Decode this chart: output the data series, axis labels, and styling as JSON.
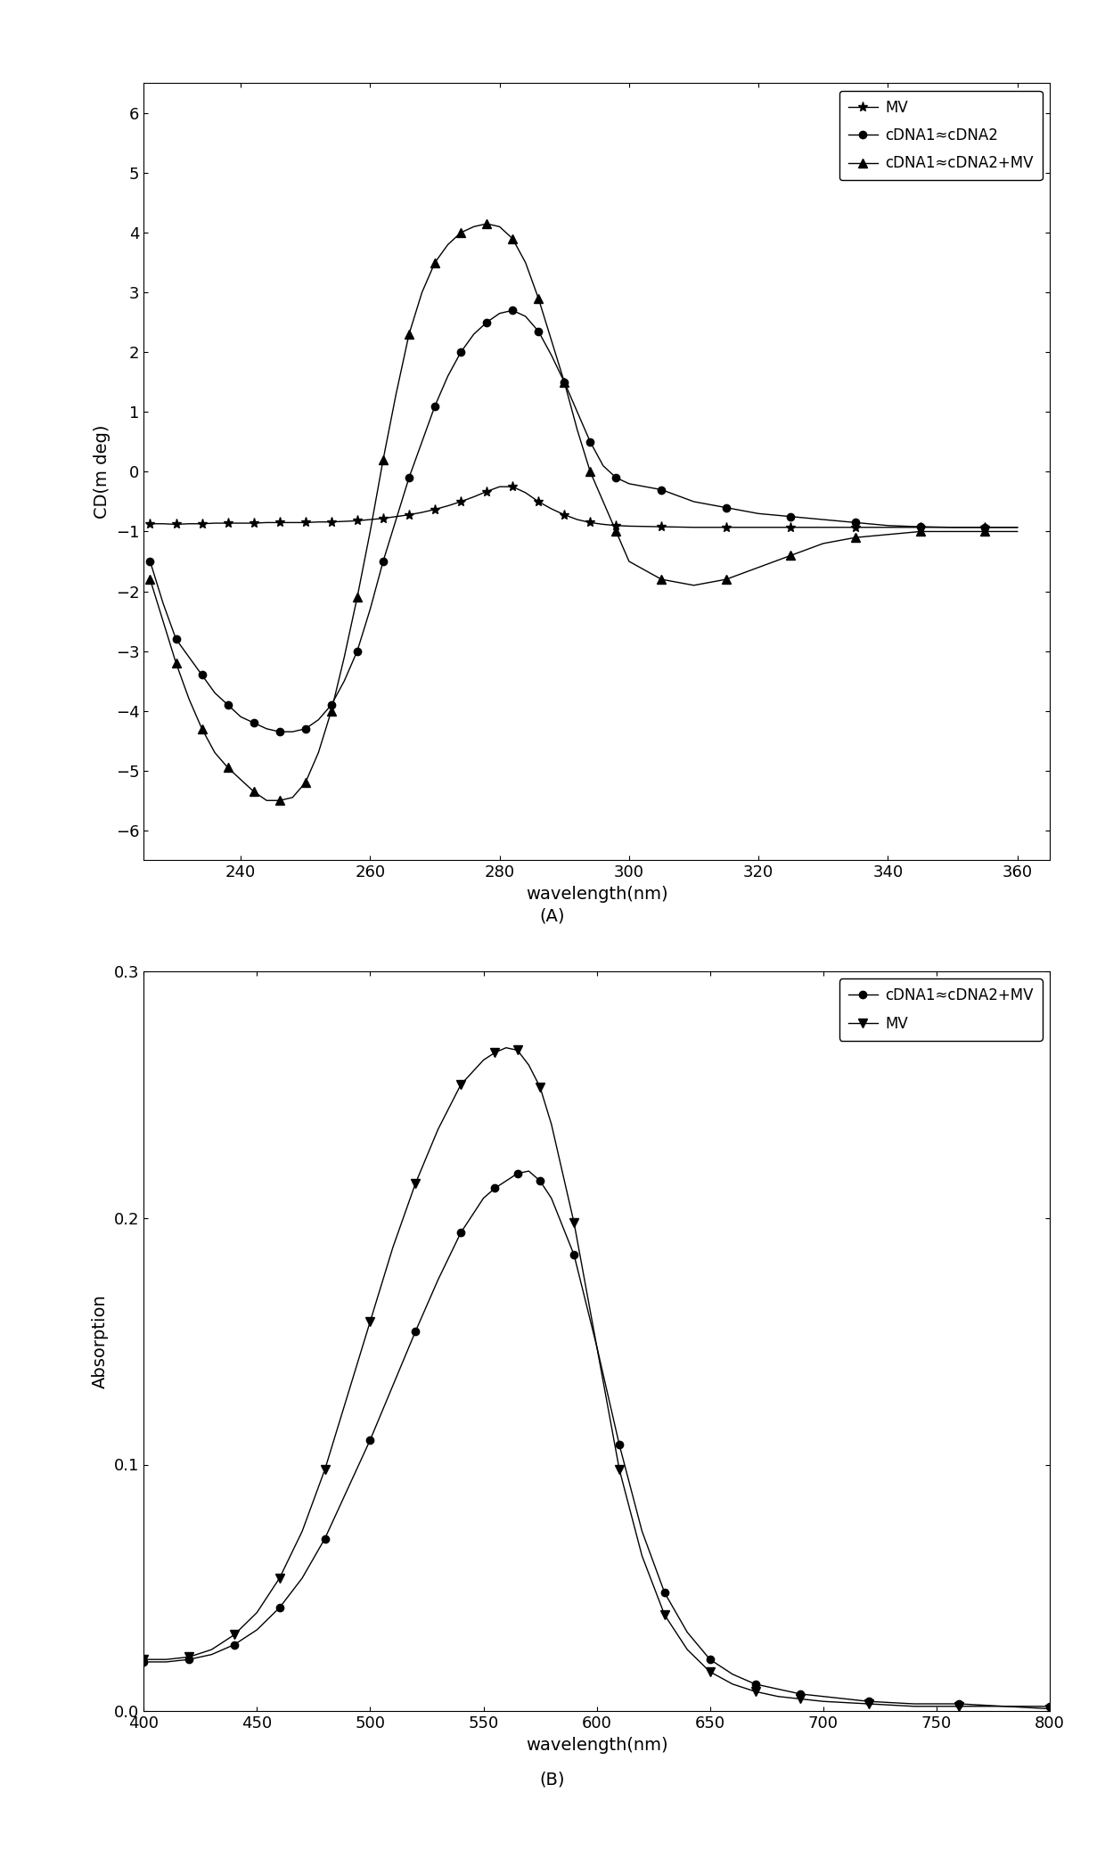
{
  "plot_A": {
    "xlabel": "wavelength(nm)",
    "ylabel": "CD(m deg)",
    "xlim": [
      225,
      365
    ],
    "ylim": [
      -6.5,
      6.5
    ],
    "xticks": [
      240,
      260,
      280,
      300,
      320,
      340,
      360
    ],
    "yticks": [
      -6,
      -5,
      -4,
      -3,
      -2,
      -1,
      0,
      1,
      2,
      3,
      4,
      5,
      6
    ],
    "label_A": "(A)",
    "series": {
      "MV": {
        "marker": "*",
        "label": "MV",
        "x": [
          226,
          228,
          230,
          232,
          234,
          236,
          238,
          240,
          242,
          244,
          246,
          248,
          250,
          252,
          254,
          256,
          258,
          260,
          262,
          264,
          266,
          268,
          270,
          272,
          274,
          276,
          278,
          280,
          282,
          284,
          286,
          288,
          290,
          292,
          294,
          296,
          298,
          300,
          305,
          310,
          315,
          320,
          325,
          330,
          335,
          340,
          345,
          350,
          355,
          360
        ],
        "y": [
          -0.87,
          -0.87,
          -0.88,
          -0.87,
          -0.87,
          -0.86,
          -0.86,
          -0.86,
          -0.86,
          -0.85,
          -0.85,
          -0.85,
          -0.85,
          -0.84,
          -0.84,
          -0.83,
          -0.82,
          -0.8,
          -0.78,
          -0.75,
          -0.72,
          -0.68,
          -0.63,
          -0.57,
          -0.5,
          -0.42,
          -0.33,
          -0.25,
          -0.25,
          -0.35,
          -0.5,
          -0.62,
          -0.72,
          -0.8,
          -0.85,
          -0.88,
          -0.9,
          -0.91,
          -0.92,
          -0.93,
          -0.93,
          -0.93,
          -0.93,
          -0.93,
          -0.93,
          -0.93,
          -0.93,
          -0.93,
          -0.93,
          -0.93
        ]
      },
      "cDNA1cDNA2": {
        "marker": "o",
        "label": "cDNA1≈cDNA2",
        "x": [
          226,
          228,
          230,
          232,
          234,
          236,
          238,
          240,
          242,
          244,
          246,
          248,
          250,
          252,
          254,
          256,
          258,
          260,
          262,
          264,
          266,
          268,
          270,
          272,
          274,
          276,
          278,
          280,
          282,
          284,
          286,
          288,
          290,
          292,
          294,
          296,
          298,
          300,
          305,
          310,
          315,
          320,
          325,
          330,
          335,
          340,
          345,
          350,
          355,
          360
        ],
        "y": [
          -1.5,
          -2.2,
          -2.8,
          -3.1,
          -3.4,
          -3.7,
          -3.9,
          -4.1,
          -4.2,
          -4.3,
          -4.35,
          -4.35,
          -4.3,
          -4.15,
          -3.9,
          -3.5,
          -3.0,
          -2.3,
          -1.5,
          -0.8,
          -0.1,
          0.5,
          1.1,
          1.6,
          2.0,
          2.3,
          2.5,
          2.65,
          2.7,
          2.6,
          2.35,
          1.95,
          1.5,
          1.0,
          0.5,
          0.1,
          -0.1,
          -0.2,
          -0.3,
          -0.5,
          -0.6,
          -0.7,
          -0.75,
          -0.8,
          -0.85,
          -0.9,
          -0.92,
          -0.93,
          -0.93,
          -0.93
        ]
      },
      "cDNA1cDNA2MV": {
        "marker": "^",
        "label": "cDNA1≈cDNA2+MV",
        "x": [
          226,
          228,
          230,
          232,
          234,
          236,
          238,
          240,
          242,
          244,
          246,
          248,
          250,
          252,
          254,
          256,
          258,
          260,
          262,
          264,
          266,
          268,
          270,
          272,
          274,
          276,
          278,
          280,
          282,
          284,
          286,
          288,
          290,
          292,
          294,
          296,
          298,
          300,
          305,
          310,
          315,
          320,
          325,
          330,
          335,
          340,
          345,
          350,
          355,
          360
        ],
        "y": [
          -1.8,
          -2.5,
          -3.2,
          -3.8,
          -4.3,
          -4.7,
          -4.95,
          -5.15,
          -5.35,
          -5.5,
          -5.5,
          -5.45,
          -5.2,
          -4.7,
          -4.0,
          -3.1,
          -2.1,
          -1.0,
          0.2,
          1.3,
          2.3,
          3.0,
          3.5,
          3.8,
          4.0,
          4.1,
          4.15,
          4.1,
          3.9,
          3.5,
          2.9,
          2.2,
          1.5,
          0.7,
          0.0,
          -0.5,
          -1.0,
          -1.5,
          -1.8,
          -1.9,
          -1.8,
          -1.6,
          -1.4,
          -1.2,
          -1.1,
          -1.05,
          -1.0,
          -1.0,
          -1.0,
          -1.0
        ]
      }
    }
  },
  "plot_B": {
    "xlabel": "wavelength(nm)",
    "ylabel": "Absorption",
    "xlim": [
      400,
      800
    ],
    "ylim": [
      0.0,
      0.3
    ],
    "xticks": [
      400,
      450,
      500,
      550,
      600,
      650,
      700,
      750,
      800
    ],
    "yticks": [
      0.0,
      0.1,
      0.2,
      0.3
    ],
    "label_B": "(B)",
    "series": {
      "cDNA1cDNA2MV": {
        "marker": "o",
        "label": "cDNA1≈cDNA2+MV",
        "x": [
          400,
          410,
          420,
          430,
          440,
          450,
          460,
          470,
          480,
          490,
          500,
          510,
          520,
          530,
          540,
          550,
          555,
          560,
          565,
          570,
          575,
          580,
          590,
          600,
          610,
          620,
          630,
          640,
          650,
          660,
          670,
          680,
          690,
          700,
          720,
          740,
          760,
          780,
          800
        ],
        "y": [
          0.02,
          0.02,
          0.021,
          0.023,
          0.027,
          0.033,
          0.042,
          0.054,
          0.07,
          0.09,
          0.11,
          0.132,
          0.154,
          0.175,
          0.194,
          0.208,
          0.212,
          0.215,
          0.218,
          0.219,
          0.215,
          0.208,
          0.185,
          0.148,
          0.108,
          0.073,
          0.048,
          0.032,
          0.021,
          0.015,
          0.011,
          0.009,
          0.007,
          0.006,
          0.004,
          0.003,
          0.003,
          0.002,
          0.002
        ]
      },
      "MV": {
        "marker": "v",
        "label": "MV",
        "x": [
          400,
          410,
          420,
          430,
          440,
          450,
          460,
          470,
          480,
          490,
          500,
          510,
          520,
          530,
          540,
          550,
          555,
          560,
          565,
          570,
          575,
          580,
          590,
          600,
          610,
          620,
          630,
          640,
          650,
          660,
          670,
          680,
          690,
          700,
          720,
          740,
          760,
          780,
          800
        ],
        "y": [
          0.021,
          0.021,
          0.022,
          0.025,
          0.031,
          0.04,
          0.054,
          0.073,
          0.098,
          0.128,
          0.158,
          0.188,
          0.214,
          0.236,
          0.254,
          0.264,
          0.267,
          0.269,
          0.268,
          0.262,
          0.253,
          0.238,
          0.198,
          0.148,
          0.098,
          0.063,
          0.039,
          0.025,
          0.016,
          0.011,
          0.008,
          0.006,
          0.005,
          0.004,
          0.003,
          0.002,
          0.002,
          0.002,
          0.001
        ]
      }
    }
  },
  "figure_bg": "#ffffff",
  "axes_bg": "#ffffff",
  "line_color": "#000000",
  "font_size_label": 14,
  "font_size_tick": 13,
  "font_size_legend": 12,
  "font_size_caption": 14
}
